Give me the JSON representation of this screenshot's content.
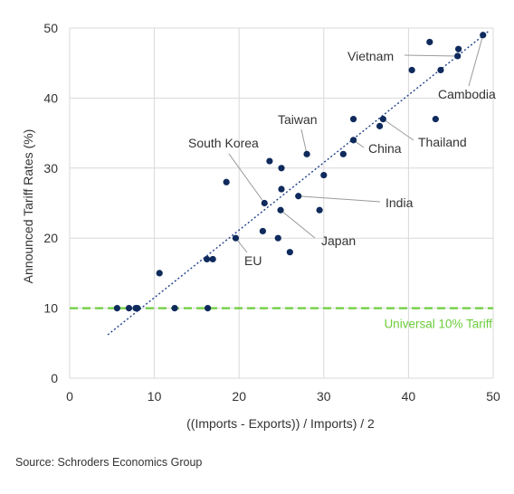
{
  "chart_data": {
    "type": "scatter",
    "xlabel": "((Imports - Exports)) / Imports) / 2",
    "ylabel": "Announced Tariff Rates (%)",
    "xlim": [
      0,
      50
    ],
    "ylim": [
      0,
      50
    ],
    "x_ticks": [
      0,
      10,
      20,
      30,
      40,
      50
    ],
    "y_ticks": [
      0,
      10,
      20,
      30,
      40,
      50
    ],
    "grid": true,
    "colors": {
      "points": "#0f2a5c",
      "trendline": "#1f3f8a",
      "baseline": "#6ccd3c",
      "grid": "#d9d9d9"
    },
    "points": [
      {
        "x": 5.6,
        "y": 10
      },
      {
        "x": 7.0,
        "y": 10
      },
      {
        "x": 7.8,
        "y": 10
      },
      {
        "x": 8.0,
        "y": 10
      },
      {
        "x": 10.6,
        "y": 15
      },
      {
        "x": 12.4,
        "y": 10
      },
      {
        "x": 16.2,
        "y": 17
      },
      {
        "x": 16.3,
        "y": 10
      },
      {
        "x": 16.9,
        "y": 17
      },
      {
        "x": 18.5,
        "y": 28
      },
      {
        "x": 19.6,
        "y": 20
      },
      {
        "x": 22.8,
        "y": 21
      },
      {
        "x": 23.0,
        "y": 25
      },
      {
        "x": 23.6,
        "y": 31
      },
      {
        "x": 24.6,
        "y": 20
      },
      {
        "x": 24.9,
        "y": 24
      },
      {
        "x": 25.0,
        "y": 27
      },
      {
        "x": 25.0,
        "y": 30
      },
      {
        "x": 26.0,
        "y": 18
      },
      {
        "x": 27.0,
        "y": 26
      },
      {
        "x": 28.0,
        "y": 32
      },
      {
        "x": 29.5,
        "y": 24
      },
      {
        "x": 30.0,
        "y": 29
      },
      {
        "x": 32.3,
        "y": 32
      },
      {
        "x": 33.5,
        "y": 34
      },
      {
        "x": 33.5,
        "y": 37
      },
      {
        "x": 36.6,
        "y": 36
      },
      {
        "x": 37.0,
        "y": 37
      },
      {
        "x": 40.4,
        "y": 44
      },
      {
        "x": 42.5,
        "y": 48
      },
      {
        "x": 43.2,
        "y": 37
      },
      {
        "x": 43.8,
        "y": 44
      },
      {
        "x": 45.8,
        "y": 46
      },
      {
        "x": 45.9,
        "y": 47
      },
      {
        "x": 48.8,
        "y": 49
      }
    ],
    "trendline": {
      "from": [
        4.5,
        6.2
      ],
      "to": [
        49.5,
        49.6
      ]
    },
    "reference_line": {
      "y": 10,
      "label": "Universal 10% Tariff"
    },
    "annotations": [
      {
        "label": "Vietnam",
        "x": 45.8,
        "y": 46
      },
      {
        "label": "Cambodia",
        "x": 48.8,
        "y": 49
      },
      {
        "label": "Taiwan",
        "x": 28.0,
        "y": 32
      },
      {
        "label": "Thailand",
        "x": 37.0,
        "y": 37
      },
      {
        "label": "China",
        "x": 33.5,
        "y": 34
      },
      {
        "label": "South Korea",
        "x": 23.0,
        "y": 25
      },
      {
        "label": "India",
        "x": 27.0,
        "y": 26
      },
      {
        "label": "Japan",
        "x": 24.9,
        "y": 24
      },
      {
        "label": "EU",
        "x": 19.6,
        "y": 20
      }
    ]
  },
  "source": "Source: Schroders Economics Group"
}
